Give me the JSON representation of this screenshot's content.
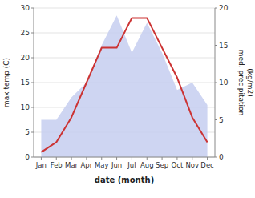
{
  "chart_data": {
    "type": "line",
    "categories": [
      "Jan",
      "Feb",
      "Mar",
      "Apr",
      "May",
      "Jun",
      "Jul",
      "Aug",
      "Sep",
      "Oct",
      "Nov",
      "Dec"
    ],
    "series": [
      {
        "type": "area",
        "axis": "y2",
        "color": "#c5cef0",
        "values": [
          5,
          5,
          8,
          10,
          15,
          19,
          14,
          18,
          14,
          9,
          10,
          7
        ]
      },
      {
        "type": "line",
        "color": "#cc3333",
        "values": [
          1,
          3,
          8,
          15,
          22,
          22,
          28,
          28,
          22,
          16,
          8,
          3
        ]
      }
    ],
    "xlabel": "date (month)",
    "ylabel": "max temp (C)",
    "y2label": "med. precipitation\n(kg/m2)",
    "ylim": [
      0,
      30
    ],
    "yticks": [
      0,
      5,
      10,
      15,
      20,
      25,
      30
    ],
    "y2lim": [
      0,
      20
    ],
    "y2ticks": [
      0,
      5,
      10,
      15,
      20
    ],
    "grid": true
  }
}
